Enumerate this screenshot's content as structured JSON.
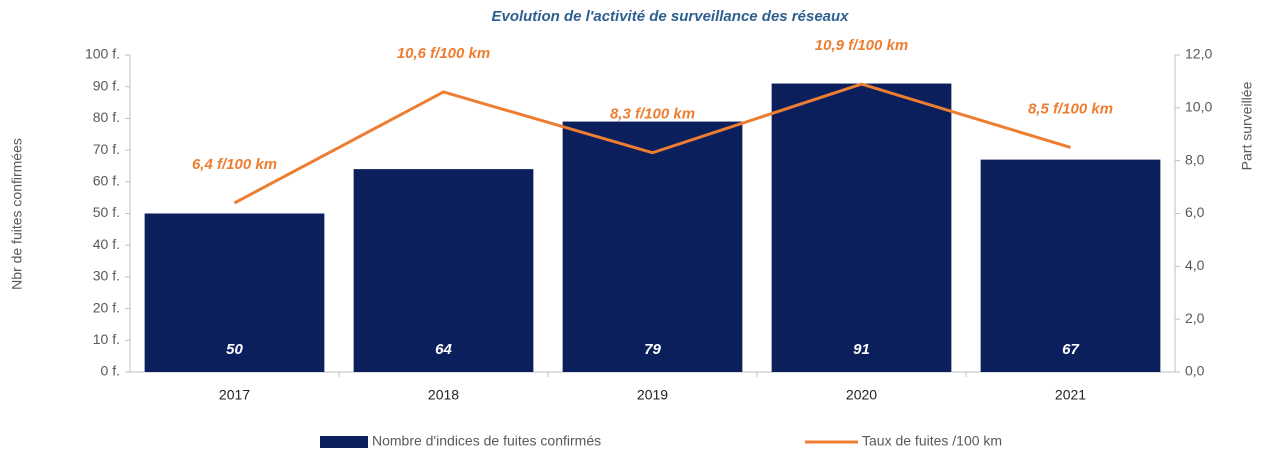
{
  "chart_data": {
    "type": "bar",
    "title": "Evolution de l'activité de surveillance des réseaux",
    "y_label": "Nbr de fuites confirmées",
    "y2_label": "Part surveillée",
    "categories": [
      "2017",
      "2018",
      "2019",
      "2020",
      "2021"
    ],
    "series": [
      {
        "name": "Nombre d'indices de fuites confirmés",
        "type": "bar",
        "color": "#0b1f5c",
        "values": [
          50,
          64,
          79,
          91,
          67
        ]
      },
      {
        "name": "Taux de fuites /100 km",
        "type": "line",
        "axis": "y2",
        "color": "#ed7d31",
        "values": [
          6.4,
          10.6,
          8.3,
          10.9,
          8.5
        ],
        "value_labels": [
          "6,4 f/100 km",
          "10,6 f/100 km",
          "8,3 f/100 km",
          "10,9 f/100 km",
          "8,5 f/100 km"
        ]
      }
    ],
    "ylim": [
      0,
      100
    ],
    "yticks": [
      {
        "value": 0,
        "label": "0 f."
      },
      {
        "value": 10,
        "label": "10 f."
      },
      {
        "value": 20,
        "label": "20 f."
      },
      {
        "value": 30,
        "label": "30 f."
      },
      {
        "value": 40,
        "label": "40 f."
      },
      {
        "value": 50,
        "label": "50 f."
      },
      {
        "value": 60,
        "label": "60 f."
      },
      {
        "value": 70,
        "label": "70 f."
      },
      {
        "value": 80,
        "label": "80 f."
      },
      {
        "value": 90,
        "label": "90 f."
      },
      {
        "value": 100,
        "label": "100 f."
      }
    ],
    "y2lim": [
      0,
      12
    ],
    "y2ticks": [
      {
        "value": 0,
        "label": "0,0"
      },
      {
        "value": 2,
        "label": "2,0"
      },
      {
        "value": 4,
        "label": "4,0"
      },
      {
        "value": 6,
        "label": "6,0"
      },
      {
        "value": 8,
        "label": "8,0"
      },
      {
        "value": 10,
        "label": "10,0"
      },
      {
        "value": 12,
        "label": "12,0"
      }
    ],
    "grid": false,
    "legend": "bottom"
  }
}
